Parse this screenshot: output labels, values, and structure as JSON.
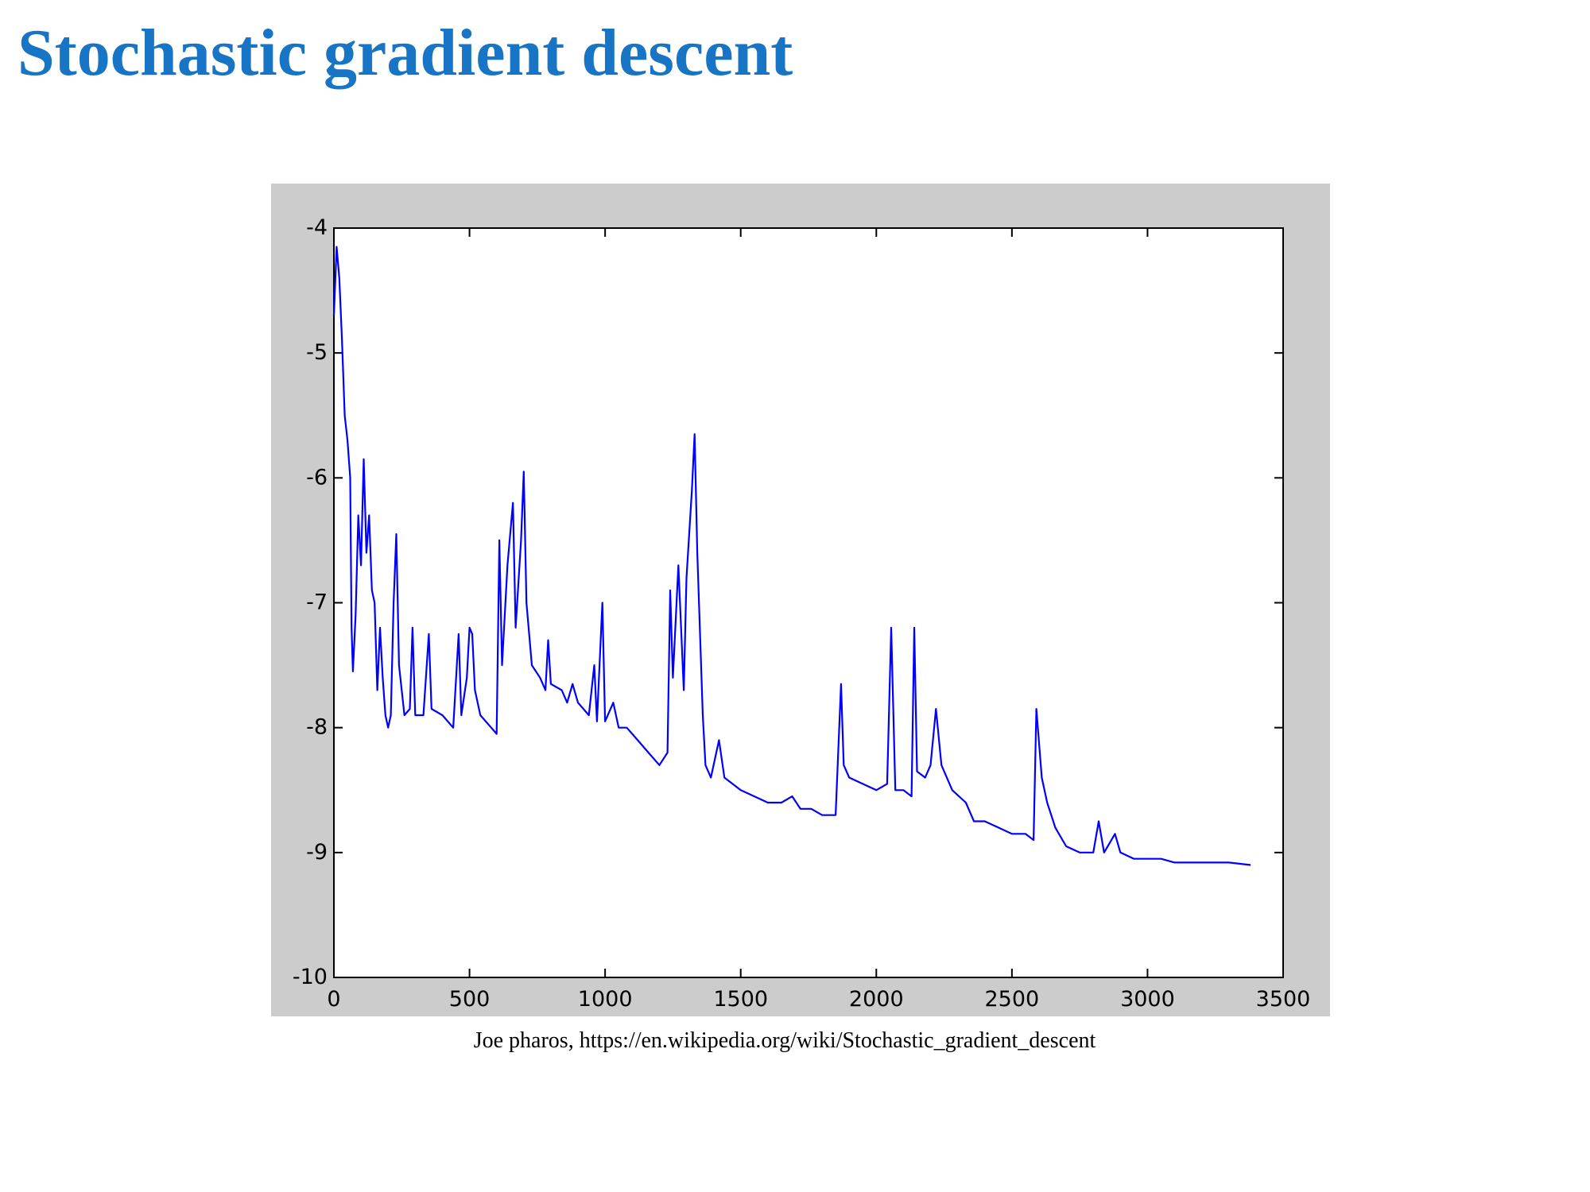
{
  "chart_data": {
    "type": "line",
    "title": "Stochastic gradient descent",
    "caption": "Joe pharos, https://en.wikipedia.org/wiki/Stochastic_gradient_descent",
    "color": "#0000ff",
    "x": [
      0,
      10,
      20,
      30,
      40,
      50,
      60,
      65,
      70,
      80,
      90,
      100,
      110,
      120,
      130,
      140,
      150,
      160,
      170,
      180,
      190,
      200,
      210,
      220,
      230,
      240,
      260,
      280,
      290,
      300,
      330,
      350,
      360,
      400,
      440,
      460,
      470,
      490,
      500,
      510,
      520,
      540,
      580,
      600,
      610,
      620,
      640,
      660,
      670,
      690,
      700,
      710,
      730,
      760,
      780,
      790,
      800,
      840,
      860,
      880,
      900,
      940,
      960,
      970,
      990,
      1000,
      1030,
      1050,
      1080,
      1120,
      1160,
      1200,
      1230,
      1240,
      1250,
      1270,
      1290,
      1300,
      1320,
      1330,
      1340,
      1360,
      1370,
      1390,
      1420,
      1440,
      1500,
      1550,
      1600,
      1650,
      1690,
      1720,
      1760,
      1800,
      1850,
      1870,
      1880,
      1900,
      1950,
      2000,
      2040,
      2055,
      2070,
      2100,
      2130,
      2140,
      2150,
      2180,
      2200,
      2220,
      2240,
      2280,
      2330,
      2360,
      2400,
      2450,
      2500,
      2550,
      2580,
      2590,
      2610,
      2630,
      2660,
      2700,
      2750,
      2800,
      2820,
      2840,
      2880,
      2900,
      2950,
      3000,
      3050,
      3100,
      3200,
      3300,
      3380
    ],
    "values": [
      -4.7,
      -4.15,
      -4.4,
      -4.9,
      -5.5,
      -5.7,
      -6.0,
      -7.2,
      -7.55,
      -7.1,
      -6.3,
      -6.7,
      -5.85,
      -6.6,
      -6.3,
      -6.9,
      -7.0,
      -7.7,
      -7.2,
      -7.6,
      -7.9,
      -8.0,
      -7.9,
      -7.0,
      -6.45,
      -7.5,
      -7.9,
      -7.85,
      -7.2,
      -7.9,
      -7.9,
      -7.25,
      -7.85,
      -7.9,
      -8.0,
      -7.25,
      -7.9,
      -7.6,
      -7.2,
      -7.25,
      -7.7,
      -7.9,
      -8.0,
      -8.05,
      -6.5,
      -7.5,
      -6.7,
      -6.2,
      -7.2,
      -6.5,
      -5.95,
      -7.0,
      -7.5,
      -7.6,
      -7.7,
      -7.3,
      -7.65,
      -7.7,
      -7.8,
      -7.65,
      -7.8,
      -7.9,
      -7.5,
      -7.95,
      -7.0,
      -7.95,
      -7.8,
      -8.0,
      -8.0,
      -8.1,
      -8.2,
      -8.3,
      -8.2,
      -6.9,
      -7.6,
      -6.7,
      -7.7,
      -6.8,
      -6.1,
      -5.65,
      -6.6,
      -7.9,
      -8.3,
      -8.4,
      -8.1,
      -8.4,
      -8.5,
      -8.55,
      -8.6,
      -8.6,
      -8.55,
      -8.65,
      -8.65,
      -8.7,
      -8.7,
      -7.65,
      -8.3,
      -8.4,
      -8.45,
      -8.5,
      -8.45,
      -7.2,
      -8.5,
      -8.5,
      -8.55,
      -7.2,
      -8.35,
      -8.4,
      -8.3,
      -7.85,
      -8.3,
      -8.5,
      -8.6,
      -8.75,
      -8.75,
      -8.8,
      -8.85,
      -8.85,
      -8.9,
      -7.85,
      -8.4,
      -8.6,
      -8.8,
      -8.95,
      -9.0,
      -9.0,
      -8.75,
      -9.0,
      -8.85,
      -9.0,
      -9.05,
      -9.05,
      -9.05,
      -9.08,
      -9.08,
      -9.08,
      -9.1
    ],
    "xlim": [
      0,
      3500
    ],
    "xticks": [
      0,
      500,
      1000,
      1500,
      2000,
      2500,
      3000,
      3500
    ],
    "ylim": [
      -10,
      -4
    ],
    "yticks": [
      -10,
      -9,
      -8,
      -7,
      -6,
      -5,
      -4
    ]
  }
}
